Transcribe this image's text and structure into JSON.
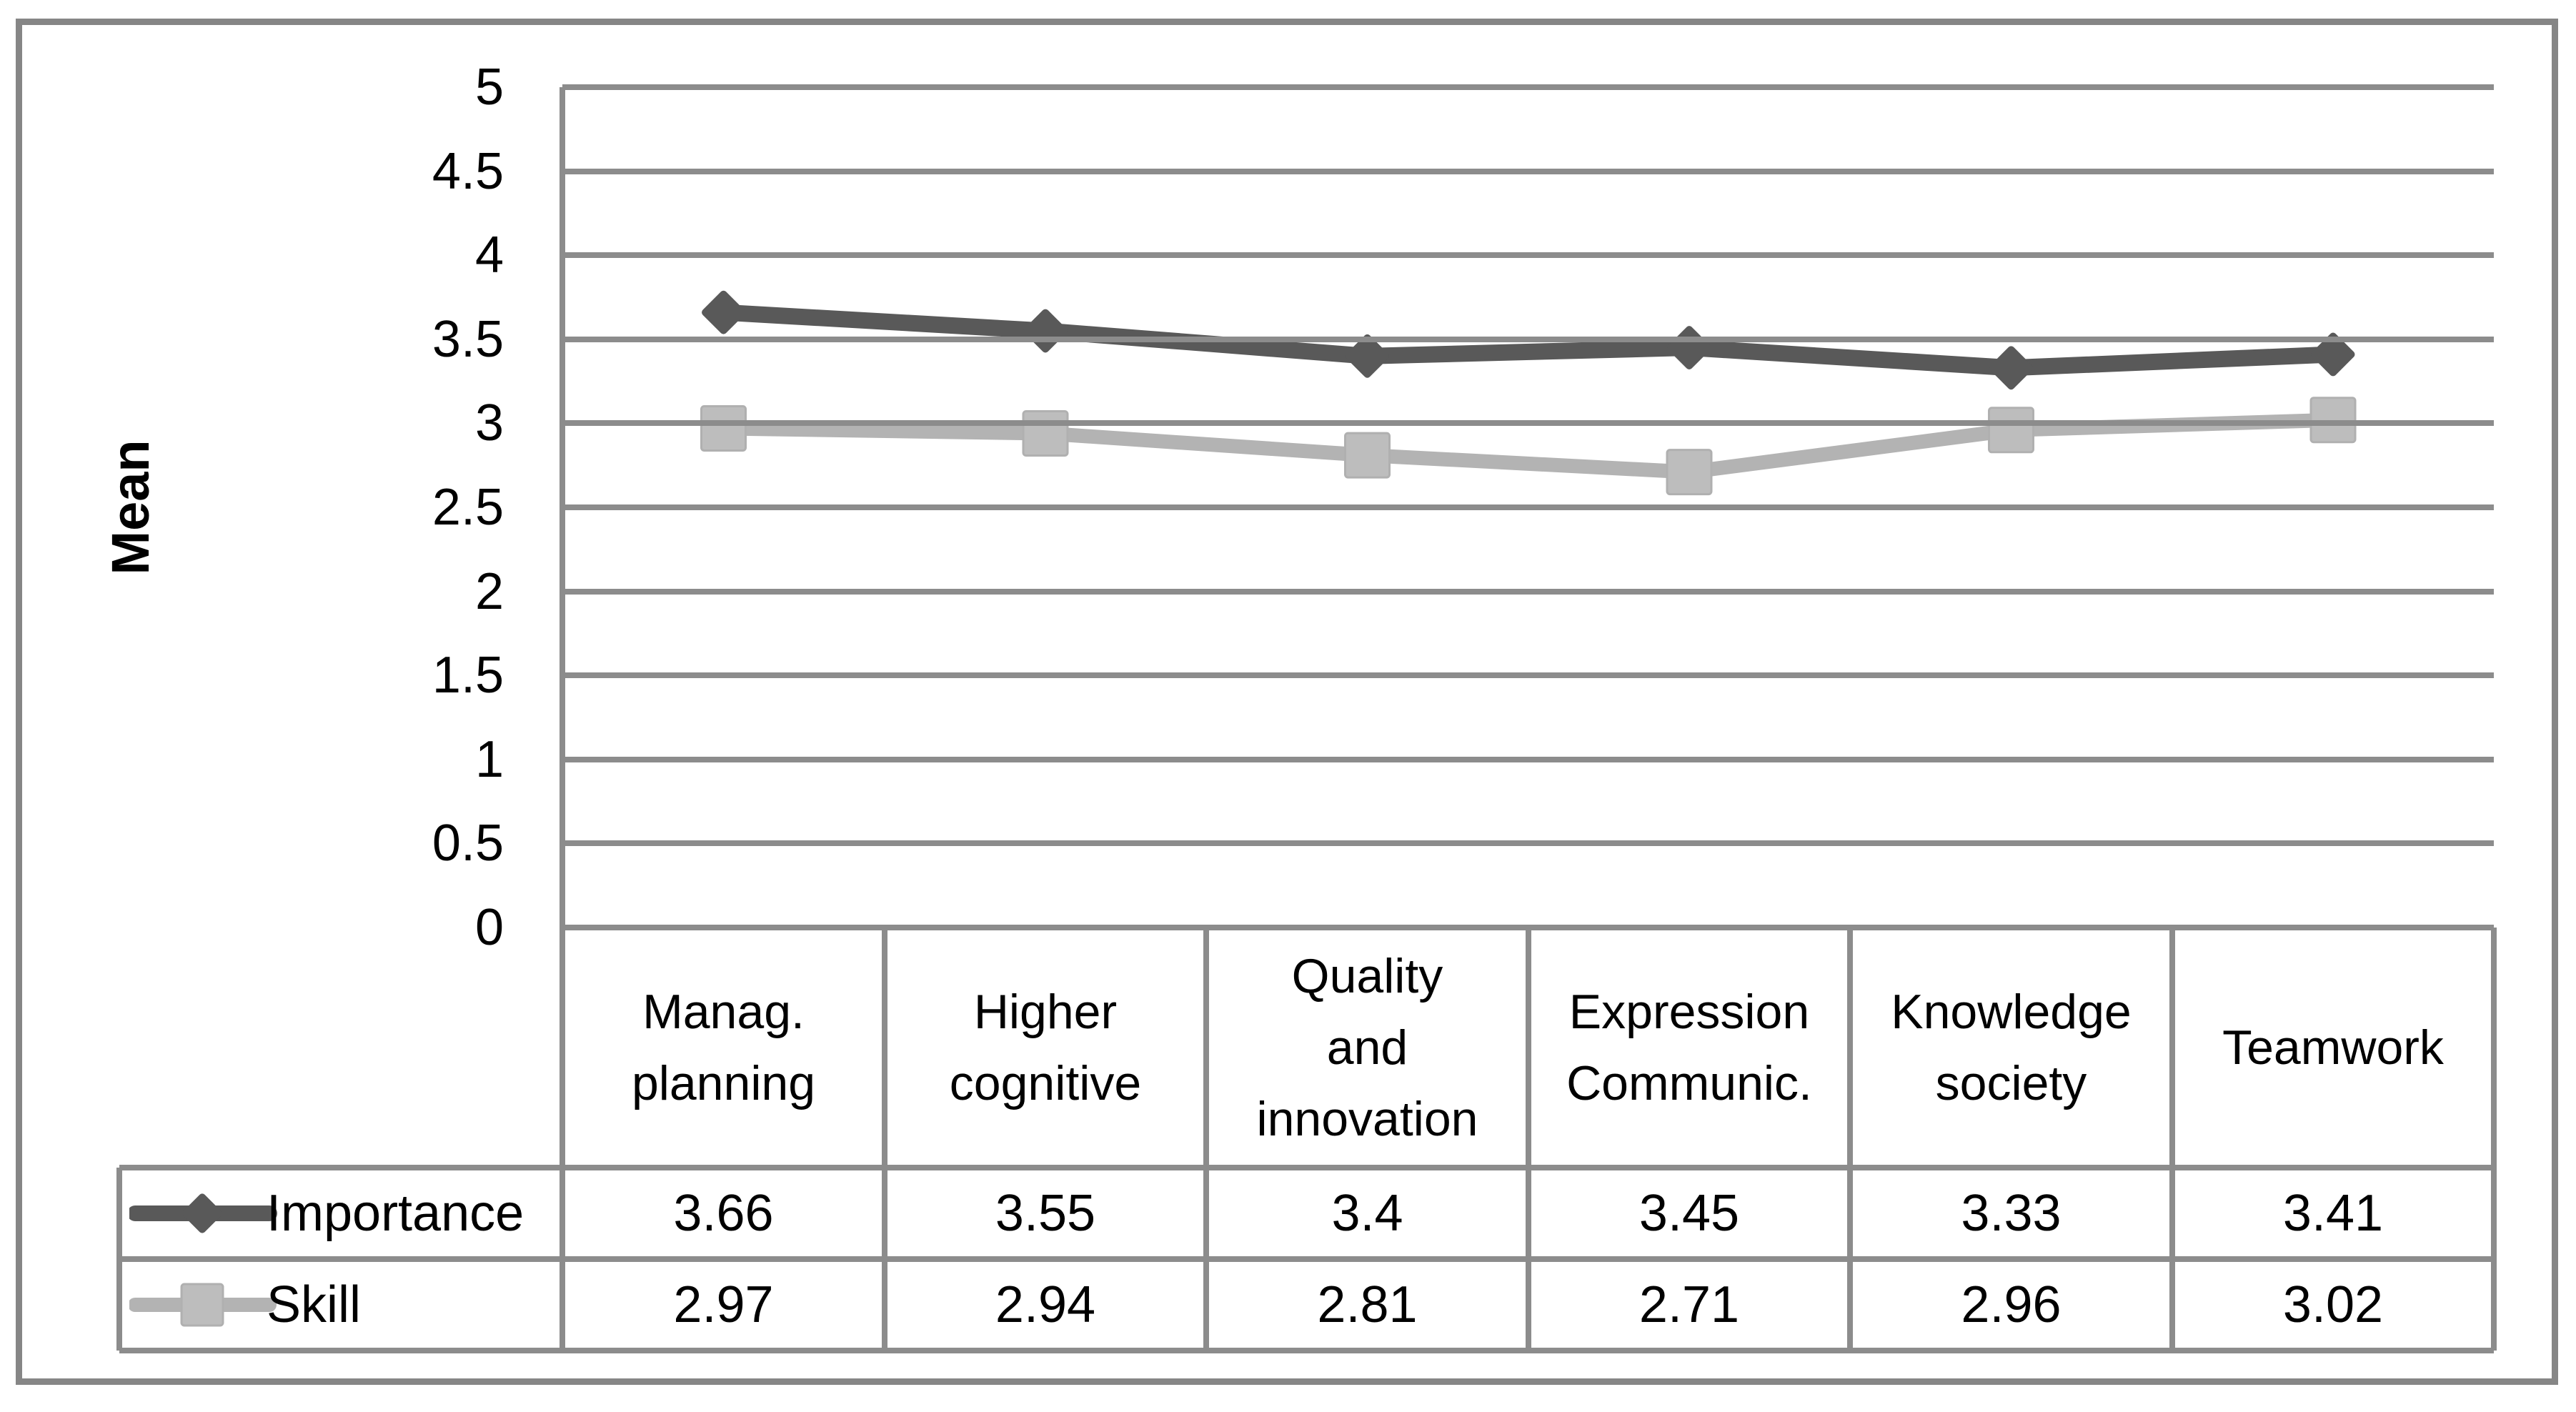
{
  "figure": {
    "background": "#ffffff",
    "border_color": "#868686"
  },
  "chart_data": {
    "type": "line",
    "title": "",
    "xlabel": "",
    "ylabel": "Mean",
    "ylim": [
      0,
      5
    ],
    "ytick_step": 0.5,
    "y_ticks": [
      "5",
      "4.5",
      "4",
      "3.5",
      "3",
      "2.5",
      "2",
      "1.5",
      "1",
      "0.5",
      "0"
    ],
    "grid": "horizontal-only",
    "grid_color": "#8c8c8c",
    "text_color": "#000000",
    "legend_position": "table-left",
    "categories": [
      "Manag.\nplanning",
      "Higher\ncognitive",
      "Quality\nand\ninnovation",
      "Expression\nCommunic.",
      "Knowledge\nsociety",
      "Teamwork"
    ],
    "series": [
      {
        "name": "Importance",
        "marker": "diamond",
        "line_color": "#595959",
        "marker_color": "#595959",
        "values": [
          3.66,
          3.55,
          3.4,
          3.45,
          3.33,
          3.41
        ],
        "display_values": [
          "3.66",
          "3.55",
          "3.4",
          "3.45",
          "3.33",
          "3.41"
        ]
      },
      {
        "name": "Skill",
        "marker": "square",
        "line_color": "#b3b3b3",
        "marker_color": "#bdbdbd",
        "values": [
          2.97,
          2.94,
          2.81,
          2.71,
          2.96,
          3.02
        ],
        "display_values": [
          "2.97",
          "2.94",
          "2.81",
          "2.71",
          "2.96",
          "3.02"
        ]
      }
    ]
  }
}
